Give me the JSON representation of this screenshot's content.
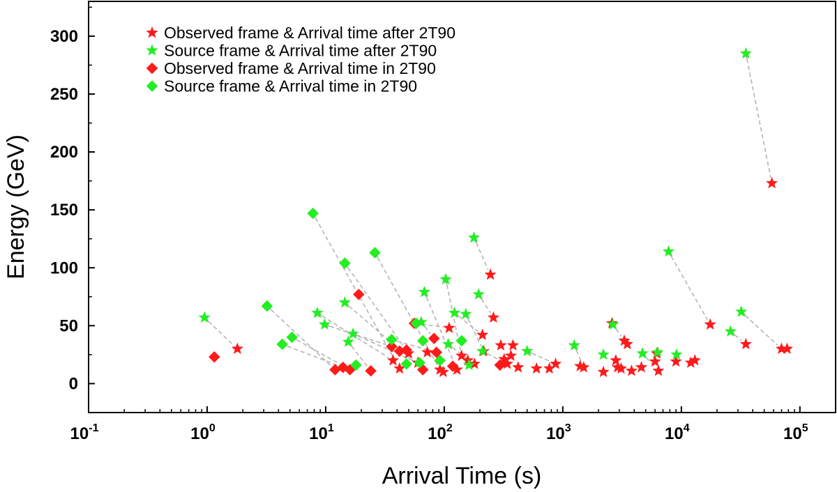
{
  "chart_data": {
    "type": "scatter",
    "xlabel": "Arrival Time (s)",
    "ylabel": "Energy (GeV)",
    "x_scale": "log",
    "xlim": [
      0.1,
      200000
    ],
    "ylim": [
      -25,
      330
    ],
    "x_ticks": [
      {
        "value": 0.1,
        "base": "10",
        "exp": "-1"
      },
      {
        "value": 1,
        "base": "10",
        "exp": "0"
      },
      {
        "value": 10,
        "base": "10",
        "exp": "1"
      },
      {
        "value": 100,
        "base": "10",
        "exp": "2"
      },
      {
        "value": 1000,
        "base": "10",
        "exp": "3"
      },
      {
        "value": 10000,
        "base": "10",
        "exp": "4"
      },
      {
        "value": 100000,
        "base": "10",
        "exp": "5"
      }
    ],
    "y_ticks": [
      {
        "value": 0,
        "label": "0"
      },
      {
        "value": 50,
        "label": "50"
      },
      {
        "value": 100,
        "label": "100"
      },
      {
        "value": 150,
        "label": "150"
      },
      {
        "value": 200,
        "label": "200"
      },
      {
        "value": 250,
        "label": "250"
      },
      {
        "value": 300,
        "label": "300"
      }
    ],
    "grid": false,
    "legend": {
      "placement": "top-left",
      "entries": [
        {
          "label": "Observed frame & Arrival time after 2T90",
          "marker": "star",
          "color": "#ff1a1a"
        },
        {
          "label": "Source frame & Arrival time after 2T90",
          "marker": "star",
          "color": "#22ee22"
        },
        {
          "label": "Observed frame & Arrival time in 2T90",
          "marker": "diamond",
          "color": "#ff1a1a"
        },
        {
          "label": "Source frame & Arrival time in 2T90",
          "marker": "diamond",
          "color": "#22ee22"
        }
      ]
    },
    "colors": {
      "observed": "#ff1a1a",
      "source": "#22ee22",
      "connector": "#b3b3b3"
    },
    "series": [
      {
        "name": "Observed frame & Arrival time after 2T90",
        "marker": "star",
        "points": [
          [
            1.8,
            30
          ],
          [
            37,
            20
          ],
          [
            42,
            13
          ],
          [
            50,
            26
          ],
          [
            60,
            18
          ],
          [
            72,
            27
          ],
          [
            92,
            12
          ],
          [
            98,
            10
          ],
          [
            110,
            48
          ],
          [
            128,
            12
          ],
          [
            140,
            24
          ],
          [
            158,
            20
          ],
          [
            180,
            17
          ],
          [
            210,
            42
          ],
          [
            215,
            28
          ],
          [
            245,
            94
          ],
          [
            260,
            57
          ],
          [
            300,
            33
          ],
          [
            320,
            21
          ],
          [
            340,
            17
          ],
          [
            365,
            24
          ],
          [
            380,
            33
          ],
          [
            420,
            14
          ],
          [
            600,
            13
          ],
          [
            770,
            13
          ],
          [
            870,
            17
          ],
          [
            1400,
            15
          ],
          [
            1500,
            14
          ],
          [
            2200,
            10
          ],
          [
            2600,
            52
          ],
          [
            2800,
            20
          ],
          [
            2900,
            14
          ],
          [
            3100,
            13
          ],
          [
            3300,
            37
          ],
          [
            3500,
            34
          ],
          [
            3800,
            11
          ],
          [
            4600,
            14
          ],
          [
            6000,
            19
          ],
          [
            6400,
            11
          ],
          [
            6200,
            26
          ],
          [
            9000,
            19
          ],
          [
            12000,
            18
          ],
          [
            13000,
            20
          ],
          [
            17500,
            51
          ],
          [
            35000,
            34
          ],
          [
            58000,
            173
          ],
          [
            70000,
            30
          ],
          [
            78000,
            30
          ]
        ]
      },
      {
        "name": "Source frame & Arrival time after 2T90",
        "marker": "star",
        "points": [
          [
            0.95,
            57
          ],
          [
            8.5,
            61
          ],
          [
            9.8,
            51
          ],
          [
            14.5,
            70
          ],
          [
            15.5,
            36
          ],
          [
            17,
            43
          ],
          [
            64,
            53
          ],
          [
            68,
            79
          ],
          [
            103,
            90
          ],
          [
            108,
            34
          ],
          [
            122,
            61
          ],
          [
            152,
            60
          ],
          [
            162,
            16
          ],
          [
            178,
            126
          ],
          [
            195,
            77
          ],
          [
            210,
            28
          ],
          [
            500,
            28
          ],
          [
            1250,
            33
          ],
          [
            2200,
            25
          ],
          [
            2650,
            51
          ],
          [
            4700,
            26
          ],
          [
            6300,
            27
          ],
          [
            7800,
            114
          ],
          [
            9100,
            25
          ],
          [
            26000,
            45
          ],
          [
            32000,
            62
          ],
          [
            35000,
            285
          ]
        ]
      },
      {
        "name": "Observed frame & Arrival time in 2T90",
        "marker": "diamond",
        "points": [
          [
            1.15,
            23
          ],
          [
            12,
            12
          ],
          [
            14,
            14
          ],
          [
            16,
            12
          ],
          [
            19,
            77
          ],
          [
            24,
            11
          ],
          [
            36,
            32
          ],
          [
            42,
            28
          ],
          [
            48,
            29
          ],
          [
            56,
            52
          ],
          [
            66,
            12
          ],
          [
            82,
            39
          ],
          [
            86,
            27
          ],
          [
            118,
            15
          ],
          [
            295,
            16
          ]
        ]
      },
      {
        "name": "Source frame & Arrival time in 2T90",
        "marker": "diamond",
        "points": [
          [
            3.2,
            67
          ],
          [
            4.3,
            34
          ],
          [
            5.2,
            40
          ],
          [
            7.8,
            147
          ],
          [
            14.5,
            104
          ],
          [
            18,
            16
          ],
          [
            26,
            113
          ],
          [
            36,
            38
          ],
          [
            48,
            17
          ],
          [
            58,
            52
          ],
          [
            62,
            18
          ],
          [
            66,
            37
          ],
          [
            92,
            20
          ],
          [
            140,
            37
          ]
        ]
      }
    ],
    "connections": [
      [
        [
          0.95,
          57
        ],
        [
          1.8,
          30
        ]
      ],
      [
        [
          7.8,
          147
        ],
        [
          42,
          13
        ]
      ],
      [
        [
          14.5,
          104
        ],
        [
          50,
          26
        ]
      ],
      [
        [
          26,
          113
        ],
        [
          92,
          12
        ]
      ],
      [
        [
          68,
          79
        ],
        [
          128,
          12
        ]
      ],
      [
        [
          103,
          90
        ],
        [
          140,
          24
        ]
      ],
      [
        [
          178,
          126
        ],
        [
          245,
          94
        ]
      ],
      [
        [
          195,
          77
        ],
        [
          260,
          57
        ]
      ],
      [
        [
          3.2,
          67
        ],
        [
          12,
          12
        ]
      ],
      [
        [
          4.3,
          34
        ],
        [
          14,
          14
        ]
      ],
      [
        [
          5.2,
          40
        ],
        [
          16,
          12
        ]
      ],
      [
        [
          8.5,
          61
        ],
        [
          37,
          20
        ]
      ],
      [
        [
          9.8,
          51
        ],
        [
          36,
          32
        ]
      ],
      [
        [
          14.5,
          70
        ],
        [
          66,
          12
        ]
      ],
      [
        [
          15.5,
          36
        ],
        [
          24,
          11
        ]
      ],
      [
        [
          17,
          43
        ],
        [
          60,
          18
        ]
      ],
      [
        [
          36,
          38
        ],
        [
          86,
          27
        ]
      ],
      [
        [
          58,
          52
        ],
        [
          110,
          48
        ]
      ],
      [
        [
          64,
          53
        ],
        [
          82,
          39
        ]
      ],
      [
        [
          122,
          61
        ],
        [
          210,
          42
        ]
      ],
      [
        [
          152,
          60
        ],
        [
          215,
          28
        ]
      ],
      [
        [
          108,
          34
        ],
        [
          180,
          17
        ]
      ],
      [
        [
          210,
          28
        ],
        [
          340,
          17
        ]
      ],
      [
        [
          500,
          28
        ],
        [
          870,
          17
        ]
      ],
      [
        [
          1250,
          33
        ],
        [
          1500,
          14
        ]
      ],
      [
        [
          2650,
          51
        ],
        [
          3300,
          37
        ]
      ],
      [
        [
          4700,
          26
        ],
        [
          6400,
          11
        ]
      ],
      [
        [
          7800,
          114
        ],
        [
          17500,
          51
        ]
      ],
      [
        [
          26000,
          45
        ],
        [
          35000,
          34
        ]
      ],
      [
        [
          32000,
          62
        ],
        [
          70000,
          30
        ]
      ],
      [
        [
          35000,
          285
        ],
        [
          58000,
          173
        ]
      ]
    ]
  }
}
